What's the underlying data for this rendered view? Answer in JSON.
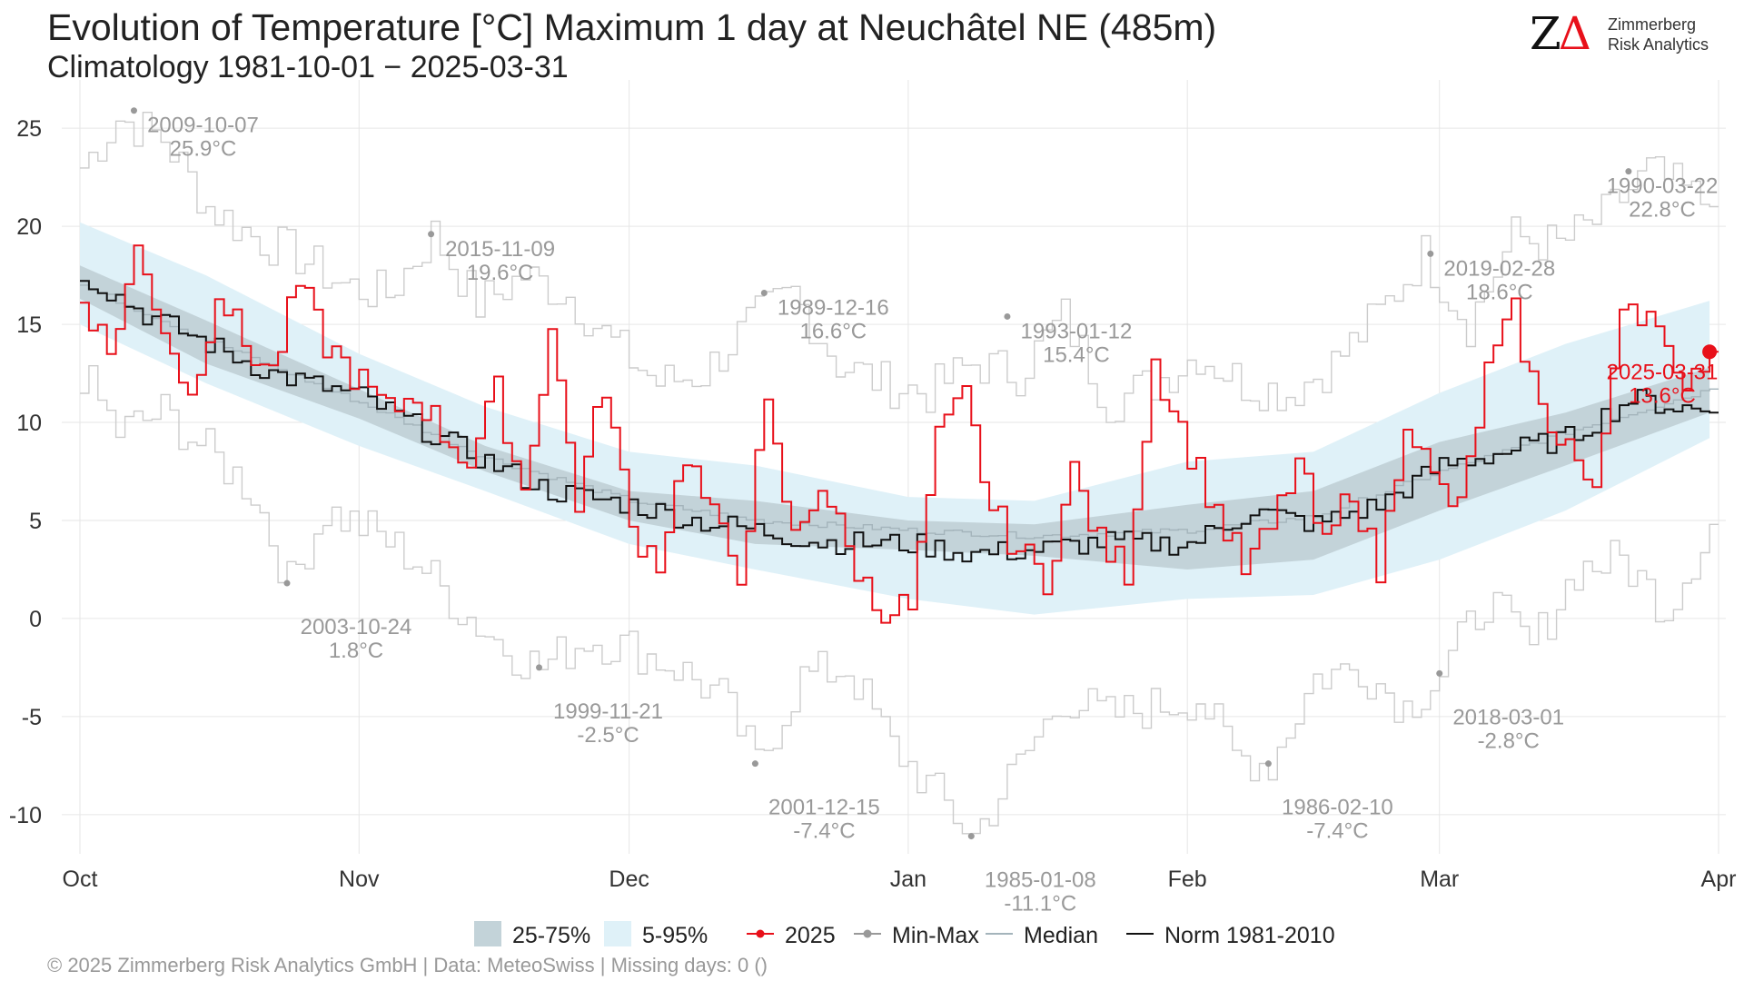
{
  "title": "Evolution of Temperature [°C] Maximum 1 day at Neuchâtel  NE (485m)",
  "subtitle": "Climatology 1981-10-01 − 2025-03-31",
  "logo": {
    "mark_letter": "Z",
    "mark_symbol": "Δ",
    "line1": "Zimmerberg",
    "line2": "Risk Analytics"
  },
  "footer": "©  2025 Zimmerberg Risk Analytics GmbH | Data: MeteoSwiss | Missing days: 0 ()",
  "legend": [
    {
      "label": "25-75%",
      "kind": "box",
      "color": "#c3d3d9"
    },
    {
      "label": "5-95%",
      "kind": "box",
      "color": "#dff1f8"
    },
    {
      "label": "2025",
      "kind": "linepoint",
      "color": "#e8101a"
    },
    {
      "label": "Min-Max",
      "kind": "linepoint",
      "color": "#999999"
    },
    {
      "label": "Median",
      "kind": "line",
      "color": "#a4b4bb"
    },
    {
      "label": "Norm 1981-2010",
      "kind": "line",
      "color": "#111111"
    }
  ],
  "chart_data": {
    "type": "line",
    "x_unit": "date",
    "x_range": [
      "2024-10-01",
      "2025-03-31"
    ],
    "ylim": [
      -12,
      27
    ],
    "yticks": [
      -10,
      -5,
      0,
      5,
      10,
      15,
      20,
      25
    ],
    "xticks": [
      {
        "label": "Oct",
        "date": "2024-10-01"
      },
      {
        "label": "Nov",
        "date": "2024-11-01"
      },
      {
        "label": "Dec",
        "date": "2024-12-01"
      },
      {
        "label": "Jan",
        "date": "2025-01-01"
      },
      {
        "label": "Feb",
        "date": "2025-02-01"
      },
      {
        "label": "Mar",
        "date": "2025-03-01"
      },
      {
        "label": "Apr",
        "date": "2025-04-01"
      }
    ],
    "grid": true,
    "legend_position": "bottom",
    "colors": {
      "p5_95": "#dff1f8",
      "p25_75": "#c3d3d9",
      "y2025": "#e8101a",
      "minmax": "#cccccc",
      "median": "#a4b4bb",
      "norm": "#111111",
      "annot": "#999999"
    },
    "bands": {
      "dates": [
        "2024-10-01",
        "2024-10-15",
        "2024-11-01",
        "2024-11-15",
        "2024-12-01",
        "2024-12-15",
        "2025-01-01",
        "2025-01-15",
        "2025-02-01",
        "2025-02-15",
        "2025-03-01",
        "2025-03-15",
        "2025-03-31"
      ],
      "p5": [
        15.0,
        12.0,
        8.8,
        6.5,
        3.8,
        2.5,
        1.0,
        0.2,
        1.0,
        1.2,
        3.0,
        5.5,
        9.2
      ],
      "p25": [
        16.3,
        13.0,
        10.2,
        7.5,
        5.0,
        3.8,
        3.5,
        3.2,
        2.5,
        3.0,
        5.5,
        7.8,
        10.5
      ],
      "p75": [
        18.0,
        15.2,
        11.7,
        8.8,
        6.5,
        6.0,
        5.0,
        4.8,
        5.8,
        6.5,
        9.0,
        10.5,
        12.8
      ],
      "p95": [
        20.2,
        17.5,
        13.5,
        10.8,
        8.5,
        7.8,
        6.2,
        6.0,
        8.0,
        8.5,
        11.5,
        14.0,
        16.2
      ]
    },
    "series": [
      {
        "name": "Median",
        "x": [
          "2024-10-01",
          "2024-10-15",
          "2024-11-01",
          "2024-11-15",
          "2024-12-01",
          "2024-12-15",
          "2025-01-01",
          "2025-01-15",
          "2025-02-01",
          "2025-02-15",
          "2025-03-01",
          "2025-03-15",
          "2025-03-31"
        ],
        "y": [
          17.0,
          14.2,
          11.0,
          8.2,
          6.0,
          5.0,
          4.5,
          4.2,
          4.5,
          5.2,
          7.5,
          9.5,
          11.7
        ]
      },
      {
        "name": "Norm 1981-2010",
        "x": [
          "2024-10-01",
          "2024-10-08",
          "2024-10-15",
          "2024-10-22",
          "2024-11-01",
          "2024-11-08",
          "2024-11-15",
          "2024-11-22",
          "2024-12-01",
          "2024-12-08",
          "2024-12-15",
          "2024-12-22",
          "2025-01-01",
          "2025-01-08",
          "2025-01-15",
          "2025-01-22",
          "2025-02-01",
          "2025-02-08",
          "2025-02-15",
          "2025-02-22",
          "2025-03-01",
          "2025-03-08",
          "2025-03-15",
          "2025-03-22",
          "2025-03-31"
        ],
        "y": [
          17.6,
          15.5,
          14.0,
          12.5,
          11.3,
          9.6,
          8.0,
          6.5,
          5.8,
          5.0,
          4.5,
          3.9,
          3.8,
          3.3,
          3.5,
          3.9,
          3.8,
          5.5,
          4.8,
          5.8,
          7.8,
          8.5,
          9.2,
          11.2,
          10.5
        ]
      },
      {
        "name": "2025",
        "x": [
          "2024-10-01",
          "2024-10-04",
          "2024-10-07",
          "2024-10-10",
          "2024-10-13",
          "2024-10-16",
          "2024-10-19",
          "2024-10-22",
          "2024-10-25",
          "2024-10-28",
          "2024-11-01",
          "2024-11-04",
          "2024-11-07",
          "2024-11-10",
          "2024-11-13",
          "2024-11-16",
          "2024-11-19",
          "2024-11-22",
          "2024-11-25",
          "2024-11-28",
          "2024-12-01",
          "2024-12-04",
          "2024-12-07",
          "2024-12-10",
          "2024-12-13",
          "2024-12-16",
          "2024-12-19",
          "2024-12-22",
          "2024-12-25",
          "2024-12-28",
          "2025-01-01",
          "2025-01-04",
          "2025-01-07",
          "2025-01-10",
          "2025-01-13",
          "2025-01-16",
          "2025-01-19",
          "2025-01-22",
          "2025-01-25",
          "2025-01-28",
          "2025-02-01",
          "2025-02-04",
          "2025-02-07",
          "2025-02-10",
          "2025-02-13",
          "2025-02-16",
          "2025-02-19",
          "2025-02-22",
          "2025-02-25",
          "2025-02-28",
          "2025-03-03",
          "2025-03-06",
          "2025-03-09",
          "2025-03-12",
          "2025-03-15",
          "2025-03-18",
          "2025-03-21",
          "2025-03-24",
          "2025-03-27",
          "2025-03-31"
        ],
        "y": [
          16.5,
          13.5,
          18.7,
          15.0,
          11.2,
          16.8,
          14.0,
          12.5,
          17.0,
          14.0,
          12.0,
          10.5,
          11.5,
          9.5,
          8.0,
          11.5,
          6.5,
          14.8,
          6.0,
          12.0,
          4.5,
          3.0,
          8.5,
          5.0,
          2.5,
          10.5,
          4.0,
          7.0,
          3.5,
          0.7,
          0.5,
          9.0,
          11.3,
          5.5,
          3.5,
          2.0,
          7.5,
          3.8,
          2.5,
          13.2,
          8.5,
          5.5,
          2.5,
          4.5,
          8.0,
          3.5,
          6.8,
          2.3,
          10.5,
          7.0,
          5.5,
          12.5,
          15.5,
          10.5,
          9.0,
          6.0,
          16.5,
          15.5,
          12.0,
          13.6
        ]
      },
      {
        "name": "Max",
        "x": [
          "2024-10-01",
          "2024-10-05",
          "2024-10-10",
          "2024-10-15",
          "2024-10-20",
          "2024-10-25",
          "2024-10-30",
          "2024-11-04",
          "2024-11-09",
          "2024-11-14",
          "2024-11-19",
          "2024-11-24",
          "2024-11-29",
          "2024-12-04",
          "2024-12-09",
          "2024-12-14",
          "2024-12-19",
          "2024-12-24",
          "2024-12-29",
          "2025-01-03",
          "2025-01-08",
          "2025-01-13",
          "2025-01-18",
          "2025-01-23",
          "2025-01-28",
          "2025-02-02",
          "2025-02-07",
          "2025-02-12",
          "2025-02-17",
          "2025-02-22",
          "2025-02-27",
          "2025-03-04",
          "2025-03-09",
          "2025-03-14",
          "2025-03-19",
          "2025-03-24",
          "2025-03-31"
        ],
        "y": [
          23.0,
          25.5,
          24.5,
          21.0,
          19.5,
          18.5,
          17.0,
          16.5,
          19.6,
          16.0,
          17.5,
          16.5,
          14.0,
          12.0,
          12.5,
          15.0,
          16.6,
          13.0,
          12.0,
          11.5,
          13.0,
          12.5,
          15.4,
          11.0,
          12.0,
          13.5,
          12.0,
          11.5,
          13.0,
          15.5,
          18.6,
          15.0,
          19.5,
          19.0,
          20.5,
          22.8,
          21.0
        ]
      },
      {
        "name": "Min",
        "x": [
          "2024-10-01",
          "2024-10-05",
          "2024-10-10",
          "2024-10-15",
          "2024-10-20",
          "2024-10-24",
          "2024-10-28",
          "2024-11-02",
          "2024-11-07",
          "2024-11-12",
          "2024-11-17",
          "2024-11-21",
          "2024-11-26",
          "2024-12-01",
          "2024-12-06",
          "2024-12-11",
          "2024-12-15",
          "2024-12-20",
          "2024-12-25",
          "2024-12-30",
          "2025-01-04",
          "2025-01-08",
          "2025-01-13",
          "2025-01-18",
          "2025-01-23",
          "2025-01-28",
          "2025-02-02",
          "2025-02-06",
          "2025-02-10",
          "2025-02-15",
          "2025-02-20",
          "2025-02-25",
          "2025-03-01",
          "2025-03-06",
          "2025-03-11",
          "2025-03-16",
          "2025-03-21",
          "2025-03-26",
          "2025-03-31"
        ],
        "y": [
          12.5,
          9.5,
          10.5,
          8.5,
          6.5,
          1.8,
          5.5,
          4.5,
          3.0,
          0.5,
          -1.5,
          -2.5,
          -1.0,
          -1.5,
          -2.5,
          -4.0,
          -7.4,
          -3.0,
          -2.5,
          -6.5,
          -9.0,
          -11.1,
          -7.5,
          -4.0,
          -5.0,
          -4.5,
          -4.0,
          -7.0,
          -7.4,
          -3.0,
          -2.5,
          -4.5,
          -2.8,
          1.0,
          -1.5,
          2.5,
          3.0,
          0.5,
          4.8
        ]
      }
    ],
    "points_2025": [
      {
        "date": "2025-03-31",
        "value": 13.6
      }
    ],
    "annotations": [
      {
        "date": "2024-10-07",
        "value": 25.9,
        "line1": "2009-10-07",
        "line2": "25.9°C",
        "kind": "max"
      },
      {
        "date": "2024-11-09",
        "value": 19.6,
        "line1": "2015-11-09",
        "line2": "19.6°C",
        "kind": "max"
      },
      {
        "date": "2024-12-16",
        "value": 16.6,
        "line1": "1989-12-16",
        "line2": "16.6°C",
        "kind": "max"
      },
      {
        "date": "2025-01-12",
        "value": 15.4,
        "line1": "1993-01-12",
        "line2": "15.4°C",
        "kind": "max"
      },
      {
        "date": "2025-02-28",
        "value": 18.6,
        "line1": "2019-02-28",
        "line2": "18.6°C",
        "kind": "max"
      },
      {
        "date": "2025-03-22",
        "value": 22.8,
        "line1": "1990-03-22",
        "line2": "22.8°C",
        "kind": "max"
      },
      {
        "date": "2024-10-24",
        "value": 1.8,
        "line1": "2003-10-24",
        "line2": "1.8°C",
        "kind": "min"
      },
      {
        "date": "2024-11-21",
        "value": -2.5,
        "line1": "1999-11-21",
        "line2": "-2.5°C",
        "kind": "min"
      },
      {
        "date": "2024-12-15",
        "value": -7.4,
        "line1": "2001-12-15",
        "line2": "-7.4°C",
        "kind": "min"
      },
      {
        "date": "2025-01-08",
        "value": -11.1,
        "line1": "1985-01-08",
        "line2": "-11.1°C",
        "kind": "min"
      },
      {
        "date": "2025-02-10",
        "value": -7.4,
        "line1": "1986-02-10",
        "line2": "-7.4°C",
        "kind": "min"
      },
      {
        "date": "2025-03-01",
        "value": -2.8,
        "line1": "2018-03-01",
        "line2": "-2.8°C",
        "kind": "min"
      },
      {
        "date": "2025-03-31",
        "value": 13.6,
        "line1": "2025-03-31",
        "line2": "13.6°C",
        "kind": "current"
      }
    ]
  }
}
